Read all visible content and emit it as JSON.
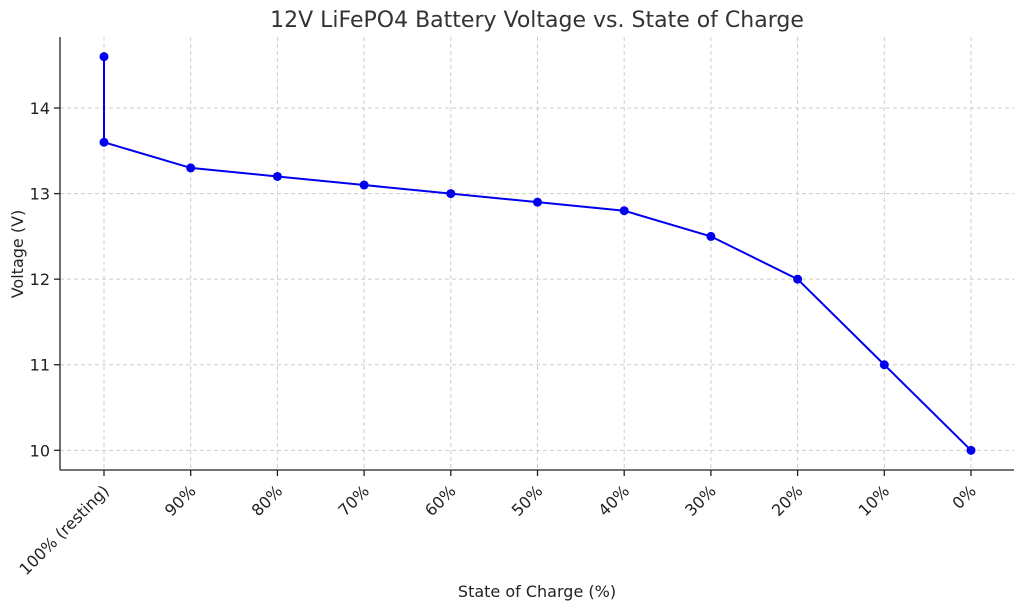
{
  "chart_data": {
    "type": "line",
    "title": "12V LiFePO4 Battery Voltage vs. State of Charge",
    "xlabel": "State of Charge (%)",
    "ylabel": "Voltage (V)",
    "categories": [
      "100% (resting)",
      "90%",
      "80%",
      "70%",
      "60%",
      "50%",
      "40%",
      "30%",
      "20%",
      "10%",
      "0%"
    ],
    "series": [
      {
        "color": "#0000ee",
        "points": [
          {
            "x": "100% (resting)",
            "y": 14.6
          },
          {
            "x": "100% (resting)",
            "y": 13.6
          },
          {
            "x": "90%",
            "y": 13.3
          },
          {
            "x": "80%",
            "y": 13.2
          },
          {
            "x": "70%",
            "y": 13.1
          },
          {
            "x": "60%",
            "y": 13.0
          },
          {
            "x": "50%",
            "y": 12.9
          },
          {
            "x": "40%",
            "y": 12.8
          },
          {
            "x": "30%",
            "y": 12.5
          },
          {
            "x": "20%",
            "y": 12.0
          },
          {
            "x": "10%",
            "y": 11.0
          },
          {
            "x": "0%",
            "y": 10.0
          }
        ]
      }
    ],
    "yticks": [
      10,
      11,
      12,
      13,
      14
    ],
    "ylim": [
      9.77,
      14.83
    ],
    "grid": true,
    "legend": "none"
  }
}
